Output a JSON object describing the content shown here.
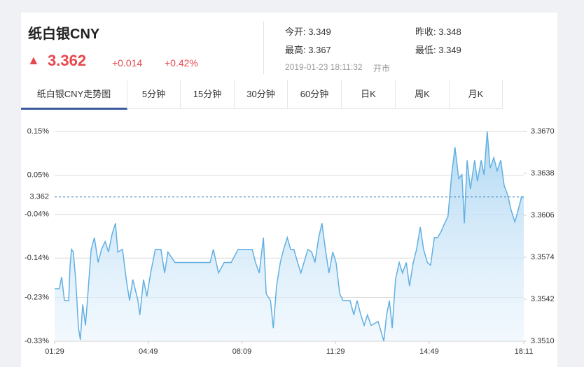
{
  "header": {
    "title": "纸白银CNY",
    "arrow": "▲",
    "price": "3.362",
    "change": "+0.014",
    "change_pct": "+0.42%",
    "stats": [
      {
        "label": "今开:",
        "value": "3.349"
      },
      {
        "label": "昨收:",
        "value": "3.348"
      },
      {
        "label": "最高:",
        "value": "3.367"
      },
      {
        "label": "最低:",
        "value": "3.349"
      }
    ],
    "time": "2019-01-23 18:11:32",
    "status": "开市"
  },
  "tabs": [
    "纸白银CNY走势图",
    "5分钟",
    "15分钟",
    "30分钟",
    "60分钟",
    "日K",
    "周K",
    "月K"
  ],
  "chart_data": {
    "type": "line",
    "x": [
      "01:29",
      "01:39",
      "01:44",
      "01:50",
      "01:59",
      "02:02",
      "02:05",
      "02:09",
      "02:14",
      "02:20",
      "02:24",
      "02:29",
      "02:35",
      "02:39",
      "02:47",
      "02:54",
      "03:02",
      "03:09",
      "03:17",
      "03:24",
      "03:32",
      "03:39",
      "03:44",
      "03:54",
      "04:02",
      "04:09",
      "04:16",
      "04:27",
      "04:31",
      "04:39",
      "04:46",
      "04:54",
      "05:04",
      "05:16",
      "05:24",
      "05:31",
      "05:46",
      "06:01",
      "06:16",
      "06:31",
      "06:46",
      "07:01",
      "07:08",
      "07:19",
      "07:31",
      "07:46",
      "08:01",
      "08:16",
      "08:31",
      "08:38",
      "08:46",
      "08:55",
      "09:01",
      "09:10",
      "09:16",
      "09:23",
      "09:31",
      "09:38",
      "09:46",
      "09:53",
      "10:00",
      "10:08",
      "10:15",
      "10:30",
      "10:38",
      "10:45",
      "10:53",
      "11:00",
      "11:08",
      "11:15",
      "11:23",
      "11:30",
      "11:38",
      "11:45",
      "12:00",
      "12:08",
      "12:15",
      "12:23",
      "12:30",
      "12:37",
      "12:45",
      "13:00",
      "13:12",
      "13:18",
      "13:24",
      "13:30",
      "13:37",
      "13:45",
      "13:52",
      "14:00",
      "14:07",
      "14:15",
      "14:22",
      "14:30",
      "14:37",
      "14:45",
      "14:52",
      "15:00",
      "15:07",
      "15:15",
      "15:22",
      "15:29",
      "15:37",
      "15:44",
      "15:52",
      "15:59",
      "16:04",
      "16:10",
      "16:17",
      "16:26",
      "16:32",
      "16:40",
      "16:46",
      "16:53",
      "16:59",
      "17:07",
      "17:14",
      "17:22",
      "17:29",
      "17:37",
      "17:44",
      "17:52",
      "17:59",
      "18:06",
      "18:11"
    ],
    "series": [
      {
        "color": "#62b0e3",
        "axis": "y2",
        "values": [
          3.355,
          3.355,
          3.3559,
          3.3541,
          3.3541,
          3.3568,
          3.358,
          3.3578,
          3.3557,
          3.352,
          3.3511,
          3.3538,
          3.3522,
          3.3541,
          3.358,
          3.3589,
          3.357,
          3.358,
          3.3586,
          3.3578,
          3.3592,
          3.36,
          3.3578,
          3.358,
          3.3557,
          3.3541,
          3.3557,
          3.3541,
          3.353,
          3.3557,
          3.3544,
          3.3562,
          3.358,
          3.358,
          3.3562,
          3.3578,
          3.357,
          3.357,
          3.357,
          3.357,
          3.357,
          3.357,
          3.358,
          3.3562,
          3.357,
          3.357,
          3.358,
          3.358,
          3.358,
          3.357,
          3.3562,
          3.3589,
          3.3546,
          3.3541,
          3.352,
          3.3552,
          3.357,
          3.358,
          3.3589,
          3.358,
          3.358,
          3.357,
          3.3562,
          3.358,
          3.3578,
          3.357,
          3.3589,
          3.36,
          3.3578,
          3.3562,
          3.3578,
          3.357,
          3.3546,
          3.3541,
          3.3541,
          3.353,
          3.3541,
          3.353,
          3.3522,
          3.353,
          3.3522,
          3.3525,
          3.351,
          3.353,
          3.3541,
          3.352,
          3.3557,
          3.357,
          3.3562,
          3.357,
          3.3552,
          3.357,
          3.358,
          3.3597,
          3.358,
          3.357,
          3.3568,
          3.3589,
          3.3589,
          3.3594,
          3.36,
          3.3605,
          3.3637,
          3.3658,
          3.3634,
          3.3637,
          3.36,
          3.3648,
          3.3626,
          3.3648,
          3.3632,
          3.3648,
          3.3637,
          3.367,
          3.3642,
          3.365,
          3.364,
          3.3648,
          3.3629,
          3.3621,
          3.361,
          3.3601,
          3.361,
          3.362,
          3.362
        ]
      }
    ],
    "xlim": [
      "01:29",
      "18:11"
    ],
    "xticks": [
      "01:29",
      "04:49",
      "08:09",
      "11:29",
      "14:49",
      "18:11"
    ],
    "ylim": [
      -0.33,
      0.15
    ],
    "yticks": [
      {
        "value": 0.15,
        "label": "0.15%"
      },
      {
        "value": 0.05,
        "label": "0.05%"
      },
      {
        "value": -0.04,
        "label": "-0.04%"
      },
      {
        "value": -0.14,
        "label": "-0.14%"
      },
      {
        "value": -0.23,
        "label": "-0.23%"
      },
      {
        "value": -0.33,
        "label": "-0.33%"
      }
    ],
    "y2lim": [
      3.351,
      3.367
    ],
    "y2ticks": [
      {
        "value": 3.367,
        "label": "3.3670"
      },
      {
        "value": 3.3638,
        "label": "3.3638"
      },
      {
        "value": 3.3606,
        "label": "3.3606"
      },
      {
        "value": 3.3574,
        "label": "3.3574"
      },
      {
        "value": 3.3542,
        "label": "3.3542"
      },
      {
        "value": 3.351,
        "label": "3.3510"
      }
    ],
    "reference_line": 3.362,
    "grid": true
  }
}
